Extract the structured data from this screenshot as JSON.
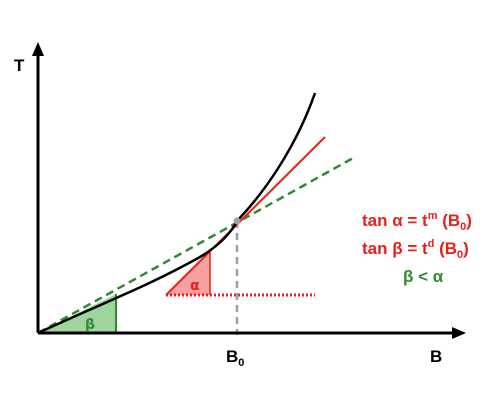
{
  "axes": {
    "y_label": "T",
    "x_label": "B",
    "x_tick": {
      "base": "B",
      "sub": "0"
    }
  },
  "angles": {
    "alpha": "α",
    "beta": "β"
  },
  "equations": {
    "line1": {
      "pre": "tan α = t",
      "sup": "m",
      "mid": " (B",
      "sub": "0",
      "post": ")"
    },
    "line2": {
      "pre": "tan β = t",
      "sup": "d",
      "mid": " (B",
      "sub": "0",
      "post": ")"
    },
    "line3": "β < α"
  },
  "colors": {
    "curve": "#000000",
    "tangent": "#e8201b",
    "secant": "#2e8b2e",
    "alpha_fill": "#f7a0a0",
    "beta_fill": "#9fd49f",
    "eq_red": "#e8201b",
    "eq_green": "#2e8b2e",
    "guide": "#a0a0a0"
  }
}
